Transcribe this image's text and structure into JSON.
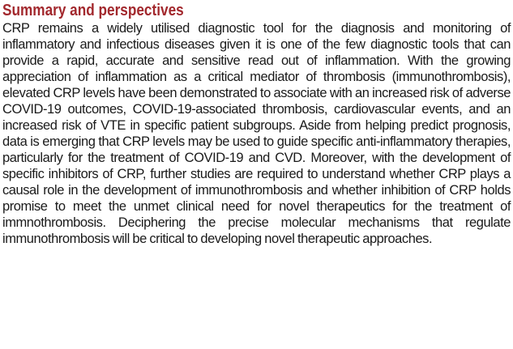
{
  "section": {
    "heading": "Summary and perspectives",
    "paragraph": "CRP remains a widely utilised diagnostic tool for the diagnosis and monitoring of inflammatory and infectious diseases given it is one of the few diagnostic tools that can provide a rapid, accurate and sensitive read out of inflammation. With the growing appreciation of inflammation as a critical mediator of thrombosis (immunothrombosis), elevated CRP levels have been demonstrated to associate with an increased risk of adverse COVID-19 outcomes, COVID-19-associated thrombosis, cardiovascular events, and an increased risk of VTE in specific patient subgroups. Aside from helping predict prognosis, data is emerging that CRP levels may be used to guide specific anti-inflammatory therapies, particularly for the treatment of COVID-19 and CVD. Moreover, with the development of specific inhibitors of CRP, further studies are required to understand whether CRP plays a causal role in the development of immunothrombosis and whether inhibition of CRP holds promise to meet the unmet clinical need for novel therapeutics for the treatment of immnothrombosis. Deciphering the precise molecular mechanisms that regulate immunothrombosis will be critical to developing novel therapeutic approaches.",
    "heading_color": "#a2282d",
    "text_color": "#1a1a1a"
  }
}
